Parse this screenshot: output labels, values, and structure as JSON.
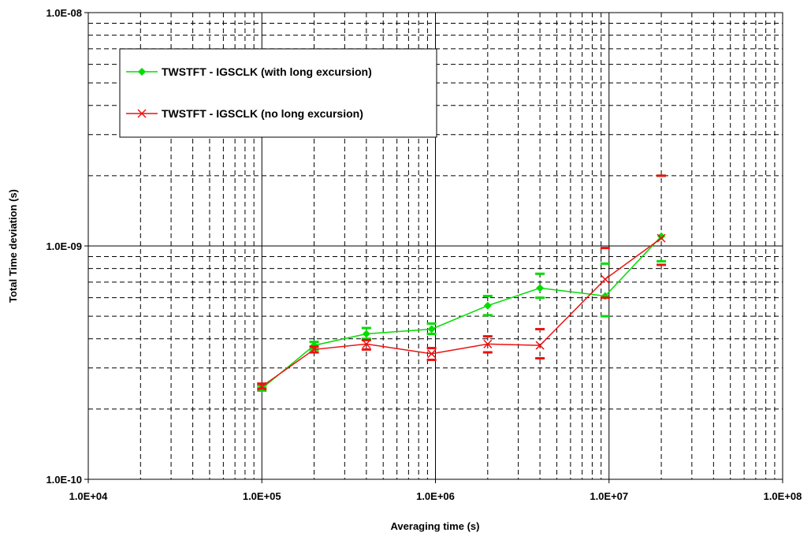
{
  "chart_data": {
    "type": "line",
    "x_scale": "log",
    "y_scale": "log",
    "xlabel": "Averaging time (s)",
    "ylabel": "Total Time deviation (s)",
    "xlim": [
      10000,
      100000000
    ],
    "ylim": [
      1e-10,
      1e-08
    ],
    "x_tick_labels": [
      "1.0E+04",
      "1.0E+05",
      "1.0E+06",
      "1.0E+07",
      "1.0E+08"
    ],
    "y_tick_labels": [
      "1.0E-10",
      "1.0E-09",
      "1.0E-08"
    ],
    "grid": "major solid, minor dashed",
    "legend_position": "top-left",
    "series": [
      {
        "name": "TWSTFT - IGSCLK (with long excursion)",
        "color": "#00dd00",
        "marker": "diamond",
        "x": [
          100000,
          200000,
          400000,
          950000,
          2000000,
          4000000,
          9500000,
          20000000
        ],
        "y": [
          2.45e-10,
          3.75e-10,
          4.2e-10,
          4.4e-10,
          5.55e-10,
          6.6e-10,
          6.1e-10,
          1.1e-09
        ],
        "err_low": [
          2.4e-10,
          3.6e-10,
          4e-10,
          4.2e-10,
          5.05e-10,
          6e-10,
          5e-10,
          8.6e-10
        ],
        "err_high": [
          2.52e-10,
          3.88e-10,
          4.45e-10,
          4.65e-10,
          6.1e-10,
          7.6e-10,
          8.4e-10,
          2e-09
        ]
      },
      {
        "name": "TWSTFT - IGSCLK (no long excursion)",
        "color": "#ee1111",
        "marker": "x",
        "x": [
          100000,
          200000,
          400000,
          950000,
          2000000,
          4000000,
          9500000,
          20000000
        ],
        "y": [
          2.5e-10,
          3.6e-10,
          3.8e-10,
          3.45e-10,
          3.8e-10,
          3.75e-10,
          7.2e-10,
          1.08e-09
        ],
        "err_low": [
          2.45e-10,
          3.5e-10,
          3.6e-10,
          3.25e-10,
          3.5e-10,
          3.3e-10,
          6e-10,
          8.3e-10
        ],
        "err_high": [
          2.57e-10,
          3.7e-10,
          3.95e-10,
          3.65e-10,
          4.1e-10,
          4.4e-10,
          9.8e-10,
          2e-09
        ]
      }
    ]
  }
}
